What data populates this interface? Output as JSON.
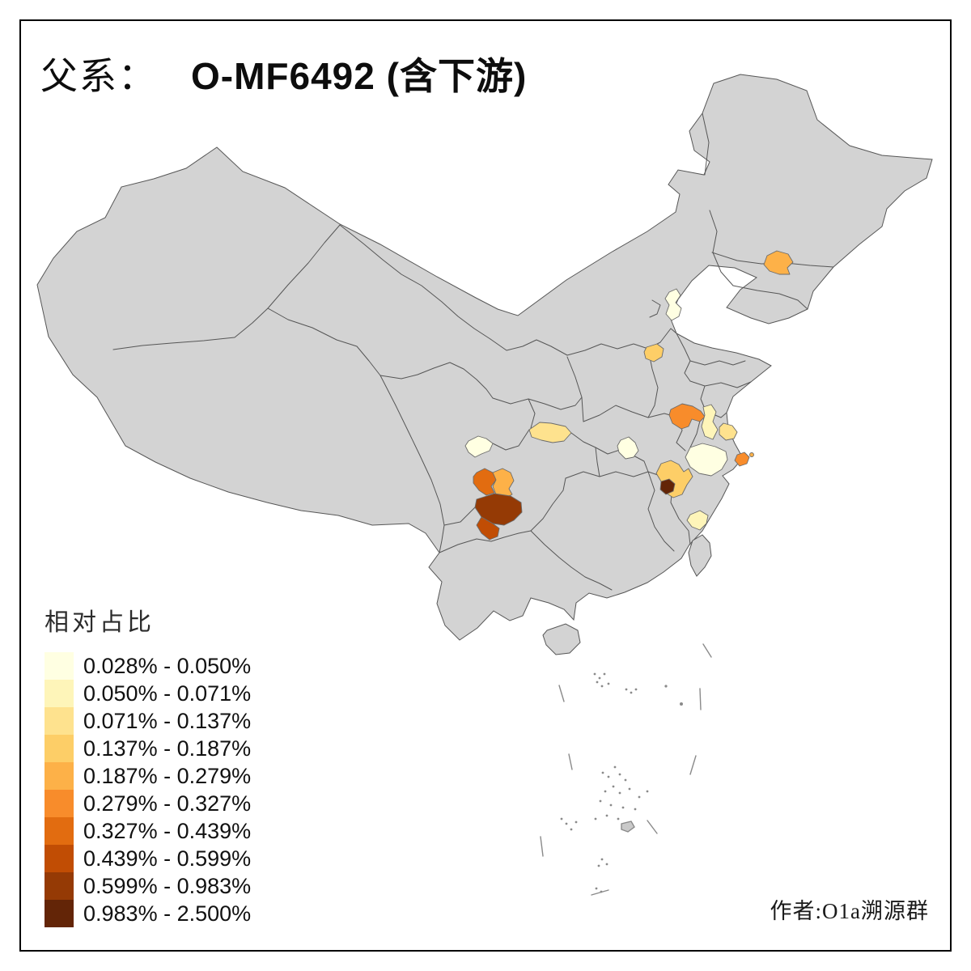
{
  "title": {
    "prefix": "父系：",
    "main": "O-MF6492 (含下游)"
  },
  "legend": {
    "title": "相对占比",
    "classes": [
      {
        "label": "0.028% - 0.050%",
        "color": "#FFFFE2"
      },
      {
        "label": "0.050% - 0.071%",
        "color": "#FEF5B9"
      },
      {
        "label": "0.071% - 0.137%",
        "color": "#FEE28E"
      },
      {
        "label": "0.137% - 0.187%",
        "color": "#FDCE67"
      },
      {
        "label": "0.187% - 0.279%",
        "color": "#FDB148"
      },
      {
        "label": "0.279% - 0.327%",
        "color": "#F88C2B"
      },
      {
        "label": "0.327% - 0.439%",
        "color": "#E26C10"
      },
      {
        "label": "0.439% - 0.599%",
        "color": "#C14D04"
      },
      {
        "label": "0.599% - 0.983%",
        "color": "#953A05"
      },
      {
        "label": "0.983% - 2.500%",
        "color": "#632507"
      }
    ]
  },
  "attribution": "作者:O1a溯源群",
  "map": {
    "land_color": "#D3D3D3",
    "sea_color": "#FFFFFF",
    "border_color": "#565656",
    "frame_color": "#000000"
  },
  "chart_data": {
    "type": "choropleth_map",
    "title": "父系： O-MF6492 (含下游)",
    "legend_title": "相对占比",
    "bins": [
      "0.028% - 0.050%",
      "0.050% - 0.071%",
      "0.071% - 0.137%",
      "0.137% - 0.187%",
      "0.187% - 0.279%",
      "0.279% - 0.327%",
      "0.327% - 0.439%",
      "0.439% - 0.599%",
      "0.599% - 0.983%",
      "0.983% - 2.500%"
    ],
    "regions": [
      {
        "id": "central-jilin-northeast-patch",
        "bin": "0.187% - 0.279%"
      },
      {
        "id": "tianjin-area-patch",
        "bin": "0.028% - 0.050%"
      },
      {
        "id": "southern-hebei-patch",
        "bin": "0.137% - 0.187%"
      },
      {
        "id": "northern-jiangsu-anhui-patch",
        "bin": "0.279% - 0.327%"
      },
      {
        "id": "central-jiangsu-patch",
        "bin": "0.050% - 0.071%"
      },
      {
        "id": "coastal-jiangsu-patch",
        "bin": "0.071% - 0.137%"
      },
      {
        "id": "shanghai-area-patch",
        "bin": "0.279% - 0.327%"
      },
      {
        "id": "south-jiangsu-north-zhejiang-patch",
        "bin": "0.028% - 0.050%"
      },
      {
        "id": "west-zhejiang-patch",
        "bin": "0.137% - 0.187%"
      },
      {
        "id": "west-zhejiang-dark-core",
        "bin": "0.983% - 2.500%"
      },
      {
        "id": "central-hubei-patch",
        "bin": "0.028% - 0.050%"
      },
      {
        "id": "chongqing-patch",
        "bin": "0.071% - 0.137%"
      },
      {
        "id": "chengdu-plain-patch",
        "bin": "0.028% - 0.050%"
      },
      {
        "id": "south-sichuan-west-patch",
        "bin": "0.327% - 0.439%"
      },
      {
        "id": "south-sichuan-east-patch",
        "bin": "0.187% - 0.279%"
      },
      {
        "id": "liangshan-south-sichuan-patch",
        "bin": "0.599% - 0.983%"
      },
      {
        "id": "panzhihua-area-patch",
        "bin": "0.439% - 0.599%"
      },
      {
        "id": "coastal-fujian-patch",
        "bin": "0.050% - 0.071%"
      },
      {
        "id": "chongming-islet-dot",
        "bin": "0.187% - 0.279%"
      }
    ]
  }
}
